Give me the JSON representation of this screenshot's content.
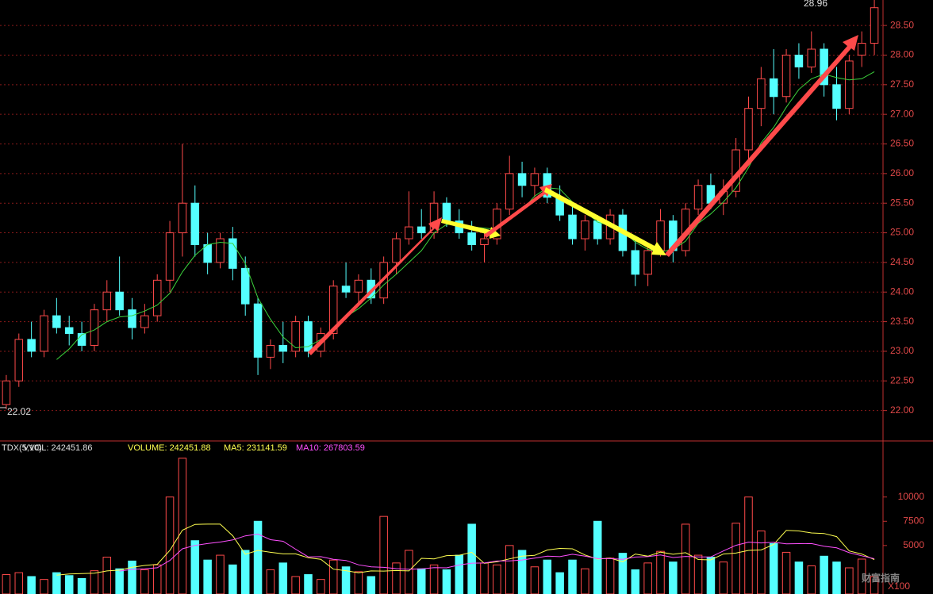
{
  "chart_data": [
    {
      "type": "candlestick",
      "open": [
        22.1,
        22.5,
        23.2,
        23.0,
        23.6,
        23.4,
        23.3,
        23.1,
        23.7,
        24.0,
        23.7,
        23.4,
        23.6,
        24.2,
        25.0,
        25.5,
        24.8,
        24.5,
        24.9,
        24.4,
        23.8,
        22.9,
        23.1,
        23.0,
        23.5,
        23.0,
        23.3,
        24.1,
        24.0,
        24.2,
        23.9,
        24.5,
        24.9,
        25.1,
        25.0,
        25.5,
        25.2,
        25.0,
        24.8,
        24.9,
        25.4,
        26.0,
        25.8,
        26.0,
        25.6,
        25.3,
        24.9,
        25.2,
        24.9,
        25.3,
        24.7,
        24.3,
        24.7,
        25.2,
        24.7,
        25.4,
        25.8,
        25.5,
        25.7,
        26.4,
        27.1,
        27.6,
        27.3,
        28.0,
        27.8,
        28.1,
        27.5,
        27.1,
        28.0,
        28.2
      ],
      "high": [
        22.6,
        23.3,
        23.5,
        23.7,
        23.9,
        23.6,
        23.5,
        23.8,
        24.2,
        24.6,
        23.9,
        23.8,
        24.3,
        25.2,
        26.5,
        25.8,
        25.0,
        25.0,
        25.1,
        24.6,
        23.9,
        23.2,
        23.5,
        23.6,
        23.6,
        23.4,
        24.2,
        24.5,
        24.3,
        24.4,
        24.6,
        25.0,
        25.7,
        25.4,
        25.7,
        25.6,
        25.4,
        25.2,
        25.0,
        25.5,
        26.3,
        26.2,
        26.1,
        26.1,
        25.8,
        25.5,
        25.3,
        25.3,
        25.4,
        25.4,
        24.9,
        24.8,
        25.4,
        25.3,
        25.5,
        25.9,
        26.0,
        25.9,
        26.6,
        27.3,
        27.8,
        28.1,
        28.1,
        28.2,
        28.4,
        28.2,
        27.8,
        28.0,
        28.4,
        28.96
      ],
      "low": [
        22.02,
        22.4,
        22.9,
        22.9,
        23.3,
        23.1,
        23.0,
        23.0,
        23.5,
        23.6,
        23.2,
        23.3,
        23.5,
        24.0,
        24.6,
        24.6,
        24.3,
        24.4,
        24.2,
        23.6,
        22.6,
        22.7,
        22.8,
        22.9,
        22.9,
        22.9,
        23.2,
        23.9,
        23.8,
        23.8,
        23.8,
        24.3,
        24.8,
        24.9,
        24.9,
        25.1,
        24.9,
        24.7,
        24.5,
        24.8,
        25.3,
        25.6,
        25.6,
        25.5,
        25.2,
        24.8,
        24.7,
        24.8,
        24.8,
        24.6,
        24.1,
        24.1,
        24.6,
        24.5,
        24.6,
        25.3,
        25.4,
        25.3,
        25.6,
        26.2,
        26.8,
        27.0,
        27.2,
        27.6,
        27.7,
        27.3,
        26.9,
        27.0,
        27.8,
        28.0
      ],
      "close": [
        22.5,
        23.2,
        23.0,
        23.6,
        23.4,
        23.3,
        23.1,
        23.7,
        24.0,
        23.7,
        23.4,
        23.6,
        24.2,
        25.0,
        25.5,
        24.8,
        24.5,
        24.9,
        24.4,
        23.8,
        22.9,
        23.1,
        23.0,
        23.5,
        23.0,
        23.3,
        24.1,
        24.0,
        24.2,
        23.9,
        24.5,
        24.9,
        25.1,
        25.0,
        25.5,
        25.2,
        25.0,
        24.8,
        24.9,
        25.4,
        26.0,
        25.8,
        26.0,
        25.6,
        25.3,
        24.9,
        25.2,
        24.9,
        25.3,
        24.7,
        24.3,
        24.7,
        25.2,
        24.7,
        25.4,
        25.8,
        25.5,
        25.7,
        26.4,
        27.1,
        27.6,
        27.3,
        28.0,
        27.8,
        28.1,
        27.5,
        27.1,
        27.9,
        28.2,
        28.8
      ],
      "ma": [
        null,
        null,
        null,
        null,
        22.86,
        23.04,
        23.28,
        23.36,
        23.5,
        23.58,
        23.6,
        23.68,
        23.78,
        23.98,
        24.34,
        24.62,
        24.8,
        24.84,
        24.82,
        24.48,
        23.9,
        23.54,
        23.24,
        23.06,
        23.08,
        23.2,
        23.38,
        23.58,
        23.72,
        23.9,
        24.12,
        24.3,
        24.5,
        24.7,
        25.0,
        25.14,
        25.16,
        25.1,
        25.08,
        25.06,
        25.22,
        25.38,
        25.62,
        25.76,
        25.74,
        25.52,
        25.36,
        25.18,
        25.12,
        25.04,
        24.84,
        24.72,
        24.68,
        24.72,
        24.86,
        25.16,
        25.32,
        25.52,
        25.76,
        26.1,
        26.52,
        26.78,
        27.12,
        27.42,
        27.6,
        27.68,
        27.62,
        27.58,
        27.6,
        27.72
      ],
      "up_color": "#ff4a4a",
      "down_color": "#54ffff",
      "ma_color": "#3cd23c",
      "ylim": [
        21.5,
        28.93
      ],
      "yticks": [
        {
          "value": 22,
          "label": "22.00"
        },
        {
          "value": 22.5,
          "label": "22.50"
        },
        {
          "value": 23,
          "label": "23.00"
        },
        {
          "value": 23.5,
          "label": "23.50"
        },
        {
          "value": 24,
          "label": "24.00"
        },
        {
          "value": 24.5,
          "label": "24.50"
        },
        {
          "value": 25,
          "label": "25.00"
        },
        {
          "value": 25.5,
          "label": "25.50"
        },
        {
          "value": 26,
          "label": "26.00"
        },
        {
          "value": 26.5,
          "label": "26.50"
        },
        {
          "value": 27,
          "label": "27.00"
        },
        {
          "value": 27.5,
          "label": "27.50"
        },
        {
          "value": 28,
          "label": "28.00"
        },
        {
          "value": 28.5,
          "label": "28.50"
        }
      ],
      "grid": true,
      "high_label": "28.96",
      "low_label": "22.02"
    },
    {
      "type": "bar",
      "header": [
        "TDX(5,10)",
        "VVOL: 242451.86",
        "VOLUME: 242451.88",
        "MA5: 231141.59",
        "MA10: 267803.59"
      ],
      "values": [
        2000,
        2200,
        1800,
        1500,
        2200,
        1900,
        1600,
        2400,
        3800,
        2600,
        3400,
        2500,
        3000,
        10000,
        14000,
        5500,
        3500,
        4000,
        3000,
        4500,
        7500,
        2500,
        3200,
        1800,
        2000,
        1500,
        3500,
        2800,
        2300,
        1800,
        8000,
        3200,
        4500,
        2600,
        3000,
        2500,
        4000,
        7200,
        3200,
        3000,
        5000,
        4500,
        2800,
        3500,
        2200,
        3500,
        2600,
        7500,
        3700,
        4200,
        2500,
        3200,
        4400,
        3300,
        7200,
        4000,
        3800,
        3300,
        7300,
        10000,
        6500,
        5200,
        4300,
        3300,
        2900,
        3900,
        3300,
        2700,
        3600,
        1800
      ],
      "series": [
        {
          "name": "MA5",
          "color": "#ffff50",
          "values": [
            null,
            null,
            null,
            null,
            1940,
            2060,
            2100,
            2140,
            2380,
            2460,
            2760,
            2940,
            3060,
            4500,
            6580,
            7180,
            7200,
            7200,
            6000,
            4100,
            4500,
            4300,
            4140,
            4140,
            3740,
            3580,
            2560,
            2400,
            2180,
            2380,
            2360,
            2420,
            2380,
            3680,
            3620,
            3960,
            4000,
            4300,
            3160,
            3320,
            3620,
            3900,
            3980,
            4540,
            4700,
            4660,
            4020,
            3600,
            3700,
            3320,
            4120,
            3900,
            4320,
            4100,
            4260,
            3560,
            3520,
            4120,
            4220,
            4500,
            4540,
            5120,
            6560,
            6500,
            6300,
            6240,
            5920,
            4440,
            4120,
            3540
          ]
        },
        {
          "name": "MA10",
          "color": "#ff50ff",
          "values": [
            null,
            null,
            null,
            null,
            null,
            null,
            null,
            null,
            null,
            2360,
            2540,
            2590,
            2710,
            3460,
            4660,
            5010,
            5200,
            5360,
            5580,
            5990,
            6180,
            5600,
            5440,
            4620,
            3830,
            3850,
            3570,
            3460,
            3010,
            2800,
            2750,
            2620,
            2550,
            2580,
            2720,
            2700,
            2990,
            3180,
            3200,
            3400,
            3420,
            3510,
            3700,
            3910,
            3850,
            4100,
            3900,
            3650,
            3650,
            3580,
            3810,
            3850,
            4020,
            3760,
            3880,
            3820,
            3820,
            4440,
            5020,
            5350,
            5270,
            5340,
            5180,
            5190,
            5200,
            4920,
            4760,
            4260,
            3940,
            3640
          ]
        }
      ],
      "ylim": [
        0,
        15700
      ],
      "yticks": [
        5000,
        7500,
        10000
      ],
      "unit_label": "X100",
      "watermark": "财富指南"
    }
  ]
}
